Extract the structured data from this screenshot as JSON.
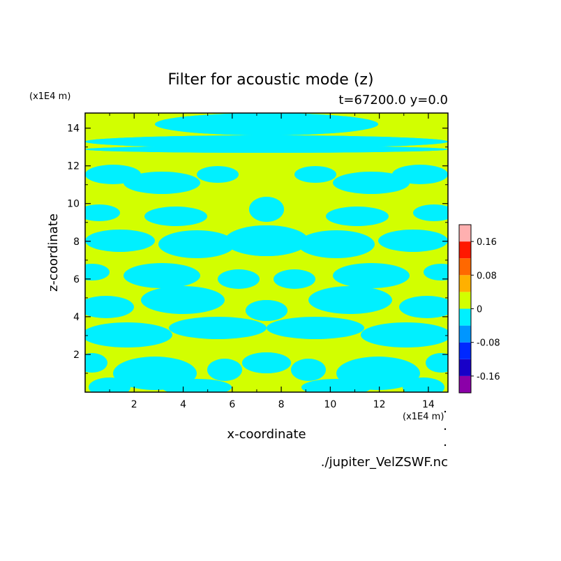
{
  "chart_data": {
    "type": "heatmap",
    "title": "Filter for acoustic mode (z)",
    "subtitle": "t=67200.0 y=0.0",
    "xlabel": "x-coordinate",
    "ylabel": "z-coordinate",
    "x_unit": "(x1E4 m)",
    "y_unit": "(x1E4 m)",
    "source": "./jupiter_VelZSWF.nc",
    "xlim": [
      0,
      14.8
    ],
    "ylim": [
      0,
      14.8
    ],
    "x_ticks": [
      2,
      4,
      6,
      8,
      10,
      12,
      14
    ],
    "y_ticks": [
      2,
      4,
      6,
      8,
      10,
      12,
      14
    ],
    "colorbar": {
      "levels": [
        -0.2,
        -0.16,
        -0.12,
        -0.08,
        -0.04,
        0,
        0.04,
        0.08,
        0.12,
        0.16,
        0.2
      ],
      "colors": [
        "#8b00a8",
        "#1800c8",
        "#0028ff",
        "#0096ff",
        "#00f0ff",
        "#d2ff00",
        "#ffb000",
        "#ff6800",
        "#ff1800",
        "#ffb0b0"
      ],
      "tick_labels": [
        "0.16",
        "0.08",
        "0",
        "-0.08",
        "-0.16"
      ],
      "tick_values": [
        0.16,
        0.08,
        0,
        -0.08,
        -0.16
      ]
    },
    "field_summary": "Field is symmetric about x≈7.4 and takes only two contour classes: 0 to 0.04 (yellow-green) and -0.04 to 0 (cyan); cyan dominates near z≈13–14."
  }
}
